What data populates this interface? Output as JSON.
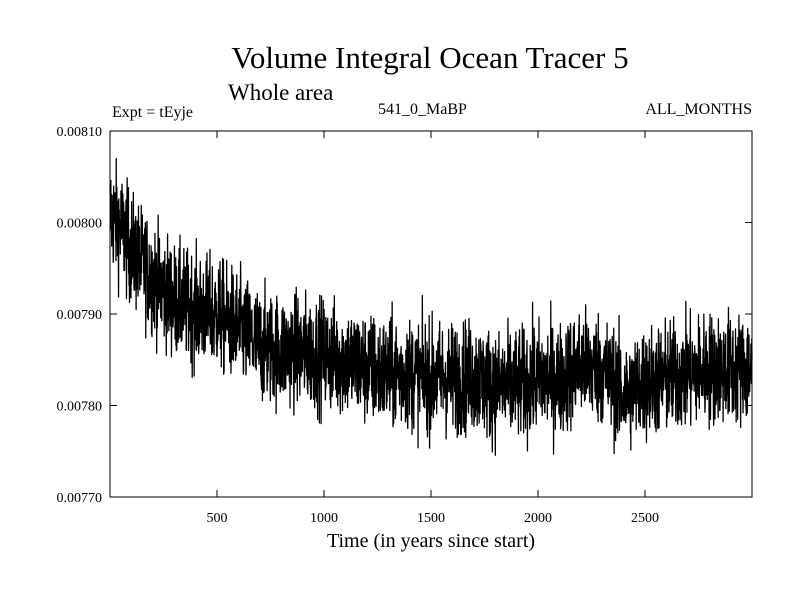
{
  "header": {
    "title": "Volume Integral Ocean Tracer 5",
    "subtitle": "Whole area",
    "experiment": "Expt = tEyje",
    "run_label": "541_0_MaBP",
    "months_label": "ALL_MONTHS"
  },
  "chart_data": {
    "type": "line",
    "title": "Volume Integral Ocean Tracer 5",
    "subtitle": "Whole area",
    "xlabel": "Time (in years since start)",
    "ylabel": "",
    "xlim": [
      0,
      3000
    ],
    "ylim": [
      0.0077,
      0.0081
    ],
    "x_ticks": [
      500,
      1000,
      1500,
      2000,
      2500
    ],
    "x_tick_labels": [
      "500",
      "1000",
      "1500",
      "2000",
      "2500"
    ],
    "y_ticks": [
      0.0077,
      0.0078,
      0.0079,
      0.008,
      0.0081
    ],
    "y_tick_labels": [
      "0.00770",
      "0.00780",
      "0.00790",
      "0.00800",
      "0.00810"
    ],
    "grid": false,
    "series": [
      {
        "name": "Volume Integral Ocean Tracer 5",
        "trend": {
          "x": [
            0,
            50,
            100,
            200,
            300,
            400,
            500,
            600,
            700,
            800,
            900,
            1000,
            1100,
            1200,
            1300,
            1400,
            1500,
            1600,
            1700,
            1800,
            1900,
            2000,
            2100,
            2200,
            2300,
            2400,
            2500,
            2600,
            2700,
            2800,
            2900,
            3000
          ],
          "y": [
            0.00801,
            0.007995,
            0.00797,
            0.00794,
            0.007915,
            0.007905,
            0.0079,
            0.007885,
            0.007865,
            0.00786,
            0.00786,
            0.007855,
            0.00785,
            0.00784,
            0.007835,
            0.007835,
            0.00783,
            0.00783,
            0.007832,
            0.00782,
            0.007822,
            0.00783,
            0.007828,
            0.007845,
            0.00784,
            0.00781,
            0.007825,
            0.00783,
            0.007835,
            0.00784,
            0.00784,
            0.00784
          ]
        },
        "noise_amplitude": 3e-05,
        "n_points": 3000,
        "y_max_observed": 0.00807,
        "y_min_observed": 0.007725
      }
    ]
  }
}
